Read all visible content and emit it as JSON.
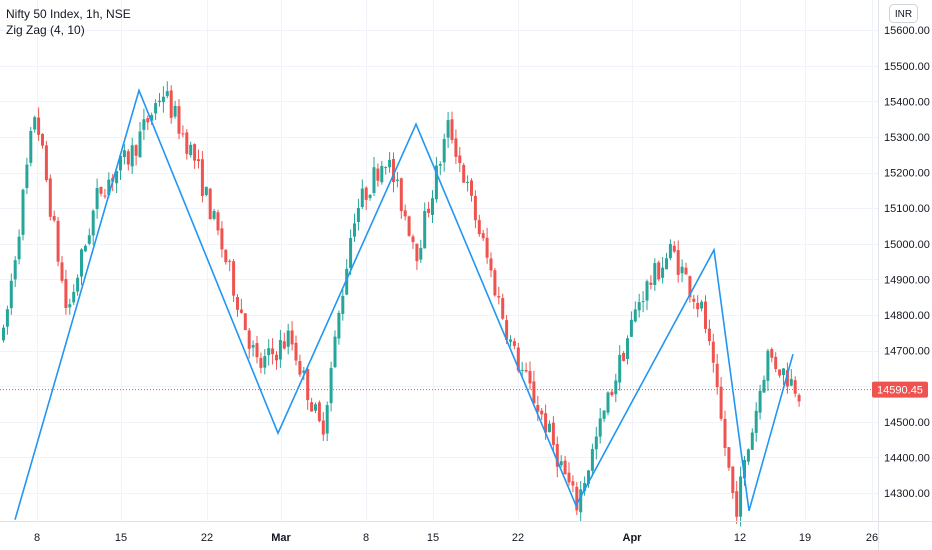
{
  "legend": {
    "symbol": "Nifty 50 Index, 1h, NSE",
    "indicator": "Zig Zag (4, 10)"
  },
  "currency": "INR",
  "last_price": "14590.45",
  "colors": {
    "up": "#26a69a",
    "down": "#ef5350",
    "zigzag": "#2196f3",
    "grid": "#f0f3fa",
    "price_tag": "#ef5350"
  },
  "chart_data": {
    "type": "candlestick",
    "title": "Nifty 50 Index, 1h, NSE",
    "ylim": [
      14230,
      15660
    ],
    "y_ticks": [
      15600,
      15500,
      15400,
      15300,
      15200,
      15100,
      15000,
      14900,
      14800,
      14700,
      14600,
      14500,
      14400,
      14300
    ],
    "y_tick_labels": [
      "15600.00",
      "15500.00",
      "15400.00",
      "15300.00",
      "15200.00",
      "15100.00",
      "15000.00",
      "14900.00",
      "14800.00",
      "14700.00",
      "",
      "14500.00",
      "14400.00",
      "14300.00"
    ],
    "x_labels": [
      {
        "label": "8",
        "bold": false
      },
      {
        "label": "15",
        "bold": false
      },
      {
        "label": "22",
        "bold": false
      },
      {
        "label": "Mar",
        "bold": true
      },
      {
        "label": "8",
        "bold": false
      },
      {
        "label": "15",
        "bold": false
      },
      {
        "label": "22",
        "bold": false
      },
      {
        "label": "Apr",
        "bold": true
      },
      {
        "label": "12",
        "bold": false
      },
      {
        "label": "19",
        "bold": false
      },
      {
        "label": "26",
        "bold": false
      }
    ],
    "zigzag": [
      {
        "date": "Feb 5",
        "price": 14225
      },
      {
        "date": "Feb 16",
        "price": 15431
      },
      {
        "date": "Mar 1",
        "price": 14468
      },
      {
        "date": "Mar 12",
        "price": 15336
      },
      {
        "date": "Mar 25",
        "price": 14265
      },
      {
        "date": "Apr 9",
        "price": 14983
      },
      {
        "date": "Apr 12",
        "price": 14250
      },
      {
        "date": "Apr 16",
        "price": 14690
      }
    ],
    "path": [
      14735,
      15380,
      14800,
      15150,
      15250,
      15431,
      15240,
      14950,
      14650,
      14740,
      14468,
      15080,
      15250,
      14980,
      15336,
      15020,
      14700,
      14500,
      14265,
      14560,
      14850,
      14983,
      14800,
      14250,
      14690,
      14590
    ]
  }
}
